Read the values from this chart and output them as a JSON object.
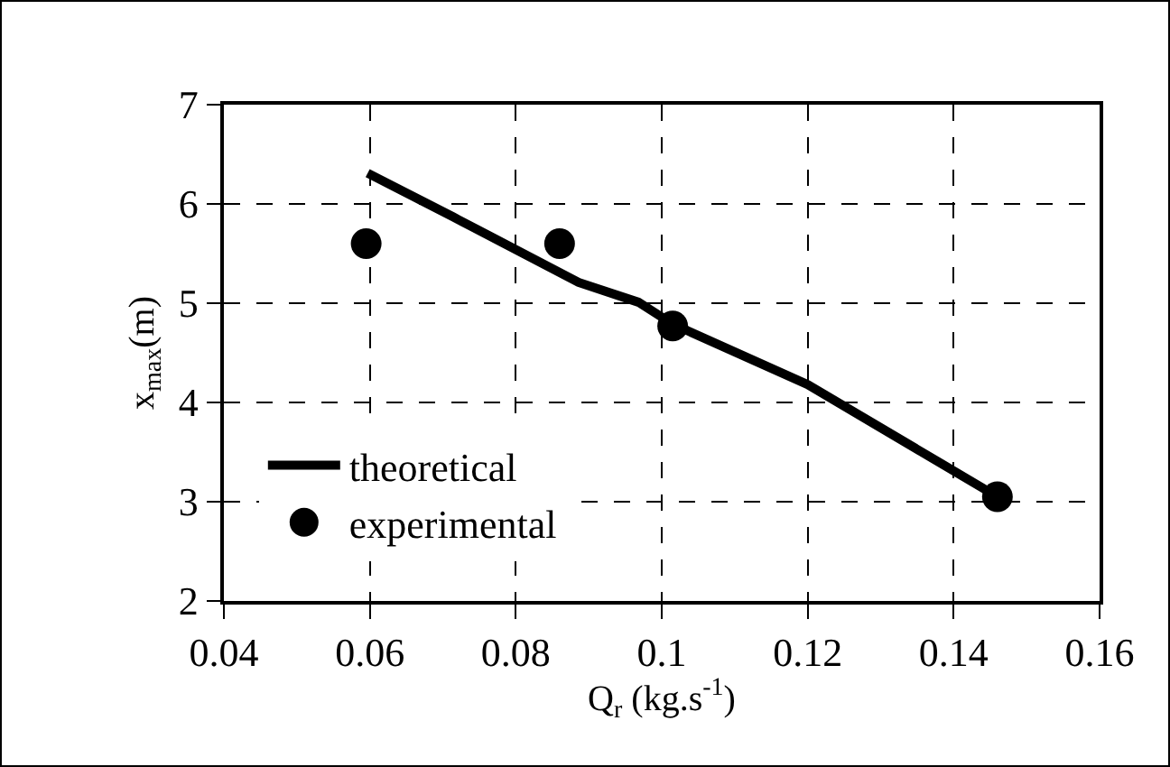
{
  "chart_data": {
    "type": "scatter",
    "xlabel": "Q$_{r}$ (kg.s$^{-1}$)",
    "ylabel": "x$_{max}$(m)",
    "series": [
      {
        "name": "theoretical",
        "type": "line",
        "color": "#000000",
        "marker": "none",
        "x": [
          0.0597,
          0.0714,
          0.0886,
          0.0968,
          0.1015,
          0.12,
          0.146
        ],
        "values": [
          6.31,
          5.87,
          5.21,
          5.01,
          4.79,
          4.18,
          3.05
        ]
      },
      {
        "name": "experimental",
        "color": "#000000",
        "marker": "circle",
        "x": [
          0.0595,
          0.086,
          0.1015,
          0.146
        ],
        "values": [
          5.6,
          5.6,
          4.77,
          3.05
        ]
      }
    ],
    "xlim": [
      0.04,
      0.16
    ],
    "xticks": [
      0.04,
      0.06,
      0.08,
      0.1,
      0.12,
      0.14,
      0.16
    ],
    "ylim": [
      2,
      7
    ],
    "yticks": [
      2,
      3,
      4,
      5,
      6,
      7
    ],
    "grid": true,
    "legend": "bottom left",
    "line_style": "solid"
  }
}
